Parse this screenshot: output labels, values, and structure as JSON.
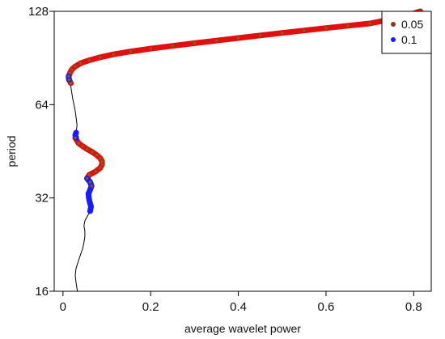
{
  "chart_data": {
    "type": "line",
    "title": "",
    "xlabel": "average wavelet power",
    "ylabel": "period",
    "xlim": [
      -0.02,
      0.84
    ],
    "ylim": [
      16,
      128
    ],
    "y_scale": "log2",
    "x_ticks": [
      "0",
      "0.2",
      "0.4",
      "0.6",
      "0.8"
    ],
    "x_tick_values": [
      0,
      0.2,
      0.4,
      0.6,
      0.8
    ],
    "y_ticks": [
      "16",
      "32",
      "64",
      "128"
    ],
    "y_tick_values": [
      16,
      32,
      64,
      128
    ],
    "grid": false,
    "legend_position": "top-right",
    "legend": [
      {
        "label": "0.05",
        "color": "#8b3a1a"
      },
      {
        "label": "0.1",
        "color": "#1a1aff"
      }
    ],
    "series": [
      {
        "role": "average power curve",
        "color": "#000000",
        "points": [
          [
            0.033,
            16.0
          ],
          [
            0.03,
            17.0
          ],
          [
            0.028,
            18.0
          ],
          [
            0.03,
            19.0
          ],
          [
            0.035,
            20.0
          ],
          [
            0.04,
            21.0
          ],
          [
            0.045,
            22.0
          ],
          [
            0.048,
            23.0
          ],
          [
            0.05,
            24.0
          ],
          [
            0.05,
            25.0
          ],
          [
            0.048,
            26.0
          ],
          [
            0.05,
            27.0
          ],
          [
            0.056,
            28.0
          ],
          [
            0.062,
            29.0
          ],
          [
            0.064,
            30.0
          ],
          [
            0.061,
            31.0
          ],
          [
            0.059,
            32.0
          ],
          [
            0.058,
            33.0
          ],
          [
            0.062,
            34.0
          ],
          [
            0.065,
            35.0
          ],
          [
            0.062,
            36.0
          ],
          [
            0.055,
            37.0
          ],
          [
            0.06,
            38.0
          ],
          [
            0.075,
            39.0
          ],
          [
            0.085,
            40.0
          ],
          [
            0.089,
            41.0
          ],
          [
            0.089,
            42.0
          ],
          [
            0.085,
            43.0
          ],
          [
            0.077,
            44.0
          ],
          [
            0.067,
            45.0
          ],
          [
            0.055,
            46.0
          ],
          [
            0.045,
            47.0
          ],
          [
            0.036,
            48.0
          ],
          [
            0.028,
            50.0
          ],
          [
            0.03,
            52.0
          ],
          [
            0.032,
            55.0
          ],
          [
            0.03,
            58.0
          ],
          [
            0.028,
            61.0
          ],
          [
            0.025,
            64.0
          ],
          [
            0.022,
            67.0
          ],
          [
            0.02,
            70.0
          ],
          [
            0.018,
            73.0
          ],
          [
            0.018,
            75.0
          ],
          [
            0.014,
            77.0
          ],
          [
            0.013,
            79.0
          ],
          [
            0.016,
            81.0
          ],
          [
            0.02,
            83.0
          ],
          [
            0.028,
            85.0
          ],
          [
            0.04,
            87.0
          ],
          [
            0.06,
            89.0
          ],
          [
            0.085,
            91.0
          ],
          [
            0.115,
            93.0
          ],
          [
            0.155,
            95.0
          ],
          [
            0.2,
            97.0
          ],
          [
            0.25,
            99.0
          ],
          [
            0.3,
            101.0
          ],
          [
            0.35,
            103.0
          ],
          [
            0.4,
            105.0
          ],
          [
            0.45,
            107.0
          ],
          [
            0.5,
            109.0
          ],
          [
            0.55,
            111.0
          ],
          [
            0.6,
            113.0
          ],
          [
            0.65,
            115.0
          ],
          [
            0.7,
            117.0
          ],
          [
            0.74,
            120.0
          ],
          [
            0.775,
            123.0
          ],
          [
            0.8,
            126.0
          ],
          [
            0.815,
            128.0
          ]
        ]
      },
      {
        "role": "significance 0.05",
        "color": "#e01010",
        "point_color": "#7a6a10",
        "segments": [
          [
            [
              0.065,
              35.0
            ],
            [
              0.062,
              36.0
            ],
            [
              0.055,
              37.0
            ],
            [
              0.06,
              38.0
            ],
            [
              0.075,
              39.0
            ],
            [
              0.085,
              40.0
            ],
            [
              0.089,
              41.0
            ],
            [
              0.089,
              42.0
            ],
            [
              0.085,
              43.0
            ],
            [
              0.077,
              44.0
            ],
            [
              0.067,
              45.0
            ],
            [
              0.055,
              46.0
            ],
            [
              0.045,
              47.0
            ],
            [
              0.036,
              48.0
            ],
            [
              0.028,
              50.0
            ]
          ],
          [
            [
              0.018,
              75.0
            ],
            [
              0.014,
              77.0
            ],
            [
              0.013,
              79.0
            ],
            [
              0.016,
              81.0
            ],
            [
              0.02,
              83.0
            ],
            [
              0.028,
              85.0
            ],
            [
              0.04,
              87.0
            ],
            [
              0.06,
              89.0
            ],
            [
              0.085,
              91.0
            ],
            [
              0.115,
              93.0
            ],
            [
              0.155,
              95.0
            ],
            [
              0.2,
              97.0
            ],
            [
              0.25,
              99.0
            ],
            [
              0.3,
              101.0
            ],
            [
              0.35,
              103.0
            ],
            [
              0.4,
              105.0
            ],
            [
              0.45,
              107.0
            ],
            [
              0.5,
              109.0
            ],
            [
              0.55,
              111.0
            ],
            [
              0.6,
              113.0
            ],
            [
              0.65,
              115.0
            ],
            [
              0.7,
              117.0
            ],
            [
              0.74,
              120.0
            ],
            [
              0.775,
              123.0
            ],
            [
              0.8,
              126.0
            ],
            [
              0.815,
              128.0
            ]
          ]
        ]
      },
      {
        "role": "significance 0.1",
        "color": "#1a1aff",
        "segments": [
          [
            [
              0.062,
              29.0
            ],
            [
              0.064,
              30.0
            ],
            [
              0.061,
              31.0
            ],
            [
              0.059,
              32.0
            ],
            [
              0.058,
              33.0
            ],
            [
              0.062,
              34.0
            ],
            [
              0.065,
              35.0
            ],
            [
              0.062,
              36.0
            ],
            [
              0.055,
              37.0
            ]
          ],
          [
            [
              0.03,
              50.0
            ],
            [
              0.028,
              51.0
            ],
            [
              0.03,
              52.0
            ]
          ],
          [
            [
              0.014,
              77.0
            ],
            [
              0.013,
              78.0
            ],
            [
              0.013,
              79.0
            ]
          ]
        ]
      }
    ]
  }
}
